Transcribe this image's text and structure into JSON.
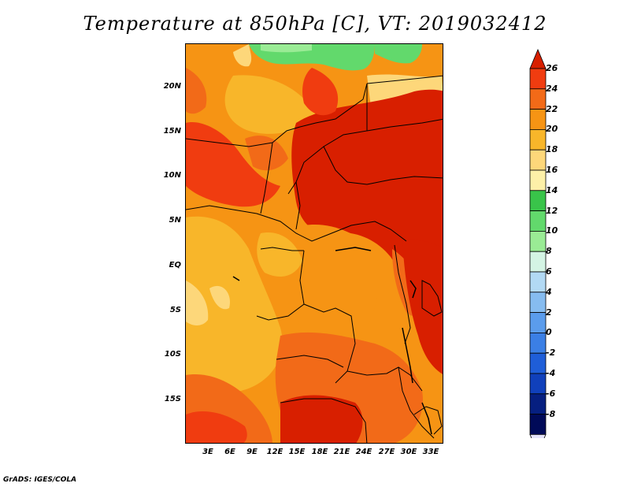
{
  "title": "Temperature at 850hPa [C], VT: 2019032412",
  "credit": "GrADS: IGES/COLA",
  "map": {
    "y_ticks": [
      "20N",
      "15N",
      "10N",
      "5N",
      "EQ",
      "5S",
      "10S",
      "15S"
    ],
    "x_ticks": [
      "3E",
      "6E",
      "9E",
      "12E",
      "15E",
      "18E",
      "21E",
      "24E",
      "27E",
      "30E",
      "33E"
    ]
  },
  "colorbar": {
    "labels": [
      "26",
      "24",
      "22",
      "20",
      "18",
      "16",
      "14",
      "12",
      "10",
      "8",
      "6",
      "4",
      "2",
      "0",
      "-2",
      "-4",
      "-6",
      "-8"
    ],
    "colors": [
      "#d81f00",
      "#f03c10",
      "#f26a18",
      "#f69414",
      "#f8b62a",
      "#fdd77a",
      "#fdf0a8",
      "#39c44a",
      "#62d96c",
      "#9aeb95",
      "#d4f4e4",
      "#b2d9f4",
      "#86bcf0",
      "#5b9cec",
      "#3b7fe5",
      "#1f5ed8",
      "#1040bb",
      "#061f80",
      "#000a58",
      "#e6e4fb"
    ]
  }
}
